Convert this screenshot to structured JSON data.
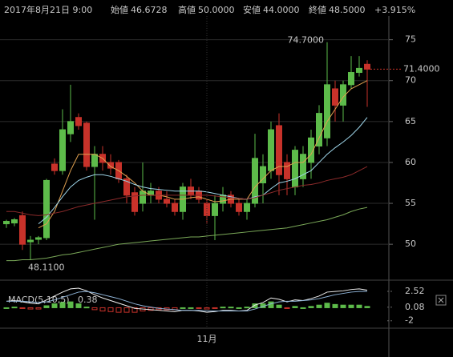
{
  "chart_data": [
    {
      "type": "candlestick",
      "title": "2017年8月21日 9:00",
      "summary": [
        {
          "name": "始値",
          "value": 46.6728
        },
        {
          "name": "高値",
          "value": {
            "value": 50,
            "label": "50.0000"
          }
        },
        {
          "name": "安値",
          "value": {
            "value": 44,
            "label": "44.0000"
          }
        },
        {
          "name": "終値",
          "value": {
            "value": 48.5,
            "label": "48.5000"
          }
        }
      ],
      "change": {
        "value": 3.915,
        "label": "+3.915%"
      },
      "ylim": [
        46.1,
        77.9
      ],
      "yticks": [
        50,
        55,
        60,
        65,
        70,
        75
      ],
      "grid": true,
      "up_color": "#5dbb4a",
      "down_color": "#c8322a",
      "candles": [
        [
          52.5,
          53,
          52,
          52.8
        ],
        [
          52.6,
          53.2,
          52.2,
          53
        ],
        [
          53.5,
          54,
          49.3,
          50
        ],
        [
          50.3,
          51,
          48.11,
          50.5
        ],
        [
          50.6,
          51,
          50,
          50.8
        ],
        [
          50.8,
          58,
          50.5,
          57.8
        ],
        [
          59.8,
          60.5,
          58.5,
          59
        ],
        [
          59,
          66.5,
          58.5,
          64
        ],
        [
          63.5,
          69.5,
          62.5,
          65
        ],
        [
          65.5,
          66,
          64,
          64.5
        ],
        [
          64.8,
          65,
          59,
          59.5
        ],
        [
          59.5,
          62,
          53,
          61
        ],
        [
          61,
          62,
          59,
          60
        ],
        [
          60,
          61,
          58.5,
          59.3
        ],
        [
          60,
          60.3,
          57.5,
          58
        ],
        [
          58,
          58.5,
          55,
          56
        ],
        [
          56.3,
          57,
          53.5,
          54
        ],
        [
          55,
          60,
          54,
          56.5
        ],
        [
          56,
          57.5,
          55,
          56.5
        ],
        [
          56.5,
          57,
          55,
          55.5
        ],
        [
          55.5,
          56.5,
          54.5,
          55
        ],
        [
          55,
          55.5,
          53.5,
          54
        ],
        [
          54,
          57.5,
          53,
          57
        ],
        [
          57,
          58,
          55.5,
          56
        ],
        [
          56.5,
          57,
          55,
          55.5
        ],
        [
          55,
          55.5,
          52.5,
          53.5
        ],
        [
          53.5,
          56,
          50.5,
          55
        ],
        [
          55,
          57,
          54,
          56
        ],
        [
          56,
          56.5,
          54.5,
          55
        ],
        [
          55,
          55.5,
          53.5,
          54
        ],
        [
          54,
          55.5,
          53,
          55
        ],
        [
          55,
          63.5,
          54.5,
          60.5
        ],
        [
          57.5,
          61,
          55,
          59.5
        ],
        [
          59,
          65,
          58,
          64
        ],
        [
          64.5,
          66,
          56,
          58.5
        ],
        [
          60,
          61,
          56,
          58
        ],
        [
          57,
          62,
          56,
          61.5
        ],
        [
          58,
          62,
          57,
          61
        ],
        [
          60,
          64,
          58,
          63
        ],
        [
          62,
          67,
          61,
          66
        ],
        [
          63,
          74.7,
          62,
          69.5
        ],
        [
          69,
          70,
          65,
          67
        ],
        [
          67,
          70,
          65,
          69.5
        ],
        [
          69.5,
          73,
          69,
          71
        ],
        [
          71,
          73,
          70.5,
          71.5
        ],
        [
          72,
          72.5,
          66.8,
          71.4
        ]
      ],
      "series": [
        {
          "color": "#e0a050",
          "values": [
            null,
            null,
            null,
            null,
            52,
            52.5,
            54,
            56.5,
            59,
            61,
            61,
            61,
            60.5,
            59.5,
            59,
            58.3,
            57.5,
            56.5,
            56,
            56,
            55.8,
            55.5,
            55.5,
            55.7,
            55.8,
            55.5,
            55.2,
            55.3,
            55.5,
            55.5,
            55.5,
            57,
            58,
            59,
            59.5,
            59.5,
            60,
            60,
            61,
            63,
            65,
            66.5,
            68,
            69,
            69.5,
            70
          ]
        },
        {
          "color": "#9fd6ea",
          "values": [
            null,
            null,
            null,
            null,
            52.5,
            53.3,
            54.5,
            55.8,
            57,
            57.8,
            58.2,
            58.5,
            58.5,
            58.3,
            58,
            57.7,
            57.3,
            57,
            56.8,
            56.7,
            56.6,
            56.5,
            56.5,
            56.5,
            56.5,
            56.4,
            56.2,
            56,
            55.8,
            55.6,
            55.5,
            55.8,
            56,
            56.8,
            57.5,
            57.7,
            58,
            58.5,
            59,
            60,
            61,
            61.8,
            62.5,
            63.3,
            64.3,
            65.5
          ]
        },
        {
          "color": "#8a2a2a",
          "values": [
            54,
            54,
            53.8,
            53.6,
            53.5,
            53.6,
            53.8,
            54,
            54.3,
            54.6,
            54.8,
            55,
            55.2,
            55.4,
            55.6,
            55.8,
            55.9,
            56,
            56,
            56,
            56,
            56,
            56,
            56,
            56,
            56,
            55.9,
            55.8,
            55.7,
            55.6,
            55.5,
            55.7,
            56,
            56.3,
            56.6,
            56.8,
            57,
            57.2,
            57.3,
            57.5,
            57.8,
            58,
            58.2,
            58.5,
            59,
            59.5
          ]
        },
        {
          "color": "#7aa858",
          "values": [
            48,
            48,
            48.1,
            48.1,
            48.2,
            48.3,
            48.5,
            48.7,
            48.8,
            49,
            49.2,
            49.4,
            49.6,
            49.8,
            50,
            50.1,
            50.2,
            50.3,
            50.4,
            50.5,
            50.6,
            50.7,
            50.8,
            50.9,
            50.9,
            51,
            51.1,
            51.2,
            51.3,
            51.4,
            51.5,
            51.6,
            51.7,
            51.8,
            51.9,
            52,
            52.2,
            52.4,
            52.6,
            52.8,
            53,
            53.3,
            53.6,
            54,
            54.3,
            54.5
          ]
        }
      ],
      "annotations": [
        {
          "value": 74.7,
          "label": "74.7000"
        },
        {
          "value": 71.4,
          "label": "71.4000"
        },
        {
          "value": 48.11,
          "label": "48.1100"
        }
      ]
    },
    {
      "type": "macd",
      "name": "MACD(5,10,5)",
      "current": 0.38,
      "ylim": [
        -2.9,
        3.5
      ],
      "yticks": [
        2.52,
        0.08,
        -2
      ],
      "up_color": "#5dbb4a",
      "down_color": "#c8322a",
      "categories": [
        null,
        null,
        null,
        null,
        null,
        null,
        null,
        null,
        null,
        null,
        null,
        null,
        null,
        null,
        null,
        null,
        null,
        null,
        null,
        null,
        null,
        null,
        null,
        null,
        null,
        "11月",
        null,
        null,
        null,
        null,
        null,
        null,
        null,
        null,
        null,
        null,
        null,
        null,
        null,
        null,
        null,
        null,
        null,
        null,
        null,
        null
      ],
      "histogram": [
        0,
        0.1,
        -0.1,
        -0.2,
        -0.2,
        0.3,
        0.6,
        0.8,
        0.9,
        0.6,
        0.1,
        -0.3,
        -0.5,
        -0.6,
        -0.7,
        -0.7,
        -0.7,
        -0.5,
        -0.4,
        -0.3,
        -0.3,
        -0.3,
        0,
        0,
        -0.1,
        -0.2,
        -0.1,
        0.1,
        0.1,
        0,
        0.1,
        0.6,
        0.6,
        0.9,
        0.4,
        -0.1,
        0.2,
        0,
        0.2,
        0.4,
        0.7,
        0.5,
        0.4,
        0.4,
        0.4,
        0.2
      ],
      "series": [
        {
          "color": "#f0f0f0",
          "values": [
            1.0,
            1.1,
            0.9,
            0.7,
            0.6,
            1.2,
            1.8,
            2.4,
            2.9,
            3.0,
            2.6,
            2.0,
            1.5,
            1.1,
            0.7,
            0.3,
            -0.1,
            -0.2,
            -0.3,
            -0.4,
            -0.5,
            -0.6,
            -0.4,
            -0.4,
            -0.5,
            -0.7,
            -0.6,
            -0.4,
            -0.4,
            -0.5,
            -0.4,
            0.4,
            0.8,
            1.5,
            1.3,
            0.9,
            1.2,
            1.1,
            1.4,
            1.8,
            2.4,
            2.5,
            2.6,
            2.8,
            2.9,
            2.7
          ]
        },
        {
          "color": "#8fb4d8",
          "values": [
            1.0,
            1.0,
            1.0,
            0.9,
            0.8,
            0.9,
            1.2,
            1.6,
            2.0,
            2.4,
            2.5,
            2.3,
            2.0,
            1.7,
            1.4,
            1.0,
            0.6,
            0.3,
            0.1,
            -0.1,
            -0.2,
            -0.3,
            -0.4,
            -0.4,
            -0.4,
            -0.5,
            -0.5,
            -0.5,
            -0.5,
            -0.5,
            -0.5,
            -0.2,
            0.2,
            0.6,
            0.9,
            1.0,
            1.0,
            1.1,
            1.2,
            1.4,
            1.7,
            2.0,
            2.2,
            2.4,
            2.5,
            2.52
          ]
        }
      ]
    }
  ]
}
